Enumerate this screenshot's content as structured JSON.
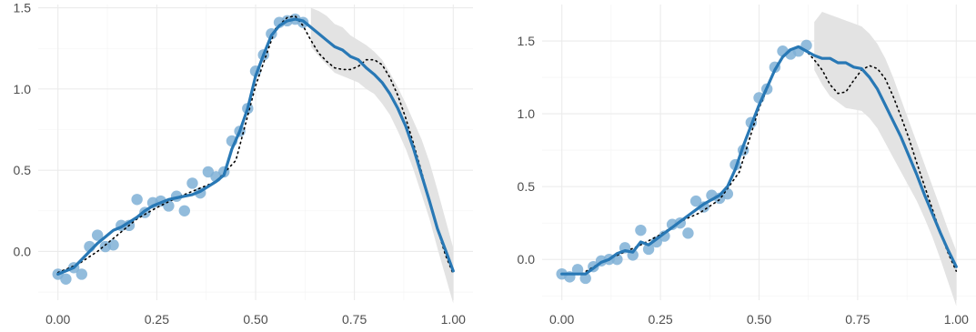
{
  "chart_data": [
    {
      "type": "scatter",
      "xlim": [
        -0.05,
        1.05
      ],
      "ylim": [
        -0.3,
        1.52
      ],
      "x_ticks": [
        {
          "value": 0.0,
          "label": "0.00"
        },
        {
          "value": 0.25,
          "label": "0.25"
        },
        {
          "value": 0.5,
          "label": "0.50"
        },
        {
          "value": 0.75,
          "label": "0.75"
        },
        {
          "value": 1.0,
          "label": "1.00"
        }
      ],
      "y_ticks": [
        {
          "value": 0.0,
          "label": "0.0"
        },
        {
          "value": 0.5,
          "label": "0.5"
        },
        {
          "value": 1.0,
          "label": "1.0"
        },
        {
          "value": 1.5,
          "label": "1.5"
        }
      ],
      "grid": true,
      "colors": {
        "points": "#7fb0d6",
        "fit": "#2878b5",
        "band": "#e3e3e3",
        "truth": "#000000",
        "grid": "#ebebeb"
      },
      "observations": {
        "x": [
          0.0,
          0.02,
          0.04,
          0.06,
          0.08,
          0.1,
          0.12,
          0.14,
          0.16,
          0.18,
          0.2,
          0.22,
          0.24,
          0.26,
          0.28,
          0.3,
          0.32,
          0.34,
          0.36,
          0.38,
          0.4,
          0.42,
          0.44,
          0.46,
          0.48,
          0.5,
          0.52,
          0.54,
          0.56,
          0.58,
          0.6,
          0.62
        ],
        "y": [
          -0.14,
          -0.17,
          -0.1,
          -0.14,
          0.03,
          0.1,
          0.03,
          0.04,
          0.16,
          0.16,
          0.32,
          0.24,
          0.3,
          0.31,
          0.28,
          0.34,
          0.25,
          0.42,
          0.36,
          0.49,
          0.46,
          0.49,
          0.68,
          0.74,
          0.88,
          1.11,
          1.21,
          1.34,
          1.41,
          1.42,
          1.43,
          1.41
        ]
      },
      "fit": {
        "x": [
          0.0,
          0.02,
          0.04,
          0.06,
          0.08,
          0.1,
          0.12,
          0.14,
          0.16,
          0.18,
          0.2,
          0.22,
          0.24,
          0.26,
          0.28,
          0.3,
          0.32,
          0.34,
          0.36,
          0.38,
          0.4,
          0.42,
          0.44,
          0.46,
          0.48,
          0.5,
          0.52,
          0.54,
          0.56,
          0.58,
          0.6,
          0.62,
          0.64,
          0.66,
          0.68,
          0.7,
          0.72,
          0.74,
          0.76,
          0.78,
          0.8,
          0.82,
          0.84,
          0.86,
          0.88,
          0.9,
          0.92,
          0.94,
          0.96,
          0.98,
          1.0
        ],
        "y": [
          -0.14,
          -0.12,
          -0.1,
          -0.05,
          0.0,
          0.05,
          0.09,
          0.13,
          0.15,
          0.18,
          0.21,
          0.25,
          0.28,
          0.3,
          0.32,
          0.33,
          0.34,
          0.35,
          0.37,
          0.4,
          0.43,
          0.47,
          0.63,
          0.74,
          0.88,
          1.08,
          1.21,
          1.33,
          1.39,
          1.42,
          1.43,
          1.42,
          1.38,
          1.34,
          1.3,
          1.26,
          1.24,
          1.2,
          1.18,
          1.13,
          1.09,
          1.04,
          0.97,
          0.88,
          0.77,
          0.63,
          0.47,
          0.31,
          0.14,
          0.01,
          -0.12
        ]
      },
      "band": {
        "x": [
          0.64,
          0.66,
          0.68,
          0.7,
          0.72,
          0.74,
          0.76,
          0.78,
          0.8,
          0.82,
          0.84,
          0.86,
          0.88,
          0.9,
          0.92,
          0.94,
          0.96,
          0.98,
          1.0
        ],
        "upper": [
          1.5,
          1.48,
          1.45,
          1.4,
          1.38,
          1.33,
          1.3,
          1.27,
          1.23,
          1.18,
          1.1,
          1.01,
          0.91,
          0.8,
          0.69,
          0.55,
          0.38,
          0.2,
          0.02
        ],
        "lower": [
          1.26,
          1.2,
          1.15,
          1.1,
          1.08,
          1.06,
          1.04,
          1.0,
          0.97,
          0.91,
          0.84,
          0.74,
          0.63,
          0.5,
          0.35,
          0.2,
          0.02,
          -0.15,
          -0.32
        ]
      },
      "truth": {
        "x": [
          0.0,
          0.05,
          0.1,
          0.15,
          0.2,
          0.25,
          0.3,
          0.35,
          0.4,
          0.45,
          0.5,
          0.55,
          0.58,
          0.6,
          0.62,
          0.64,
          0.66,
          0.68,
          0.7,
          0.72,
          0.74,
          0.76,
          0.78,
          0.8,
          0.82,
          0.84,
          0.86,
          0.88,
          0.9,
          0.92,
          0.94,
          0.96,
          0.98,
          1.0
        ],
        "y": [
          -0.13,
          -0.08,
          0.0,
          0.1,
          0.2,
          0.27,
          0.33,
          0.38,
          0.43,
          0.56,
          1.02,
          1.37,
          1.44,
          1.45,
          1.39,
          1.3,
          1.22,
          1.17,
          1.13,
          1.12,
          1.12,
          1.14,
          1.18,
          1.18,
          1.15,
          1.07,
          0.96,
          0.82,
          0.66,
          0.49,
          0.31,
          0.14,
          -0.02,
          -0.14
        ]
      }
    },
    {
      "type": "scatter",
      "xlim": [
        -0.05,
        1.05
      ],
      "ylim": [
        -0.28,
        1.75
      ],
      "x_ticks": [
        {
          "value": 0.0,
          "label": "0.00"
        },
        {
          "value": 0.25,
          "label": "0.25"
        },
        {
          "value": 0.5,
          "label": "0.50"
        },
        {
          "value": 0.75,
          "label": "0.75"
        },
        {
          "value": 1.0,
          "label": "1.00"
        }
      ],
      "y_ticks": [
        {
          "value": 0.0,
          "label": "0.0"
        },
        {
          "value": 0.5,
          "label": "0.5"
        },
        {
          "value": 1.0,
          "label": "1.0"
        },
        {
          "value": 1.5,
          "label": "1.5"
        }
      ],
      "grid": true,
      "colors": {
        "points": "#7fb0d6",
        "fit": "#2878b5",
        "band": "#e3e3e3",
        "truth": "#000000",
        "grid": "#ebebeb"
      },
      "observations": {
        "x": [
          0.0,
          0.02,
          0.04,
          0.06,
          0.08,
          0.1,
          0.12,
          0.14,
          0.16,
          0.18,
          0.2,
          0.22,
          0.24,
          0.26,
          0.28,
          0.3,
          0.32,
          0.34,
          0.36,
          0.38,
          0.4,
          0.42,
          0.44,
          0.46,
          0.48,
          0.5,
          0.52,
          0.54,
          0.56,
          0.58,
          0.6,
          0.62
        ],
        "y": [
          -0.1,
          -0.12,
          -0.07,
          -0.13,
          -0.05,
          -0.01,
          0.0,
          0.0,
          0.08,
          0.03,
          0.2,
          0.07,
          0.12,
          0.16,
          0.24,
          0.25,
          0.18,
          0.4,
          0.36,
          0.44,
          0.42,
          0.45,
          0.65,
          0.75,
          0.94,
          1.11,
          1.17,
          1.32,
          1.43,
          1.41,
          1.43,
          1.47
        ]
      },
      "fit": {
        "x": [
          0.0,
          0.02,
          0.04,
          0.06,
          0.08,
          0.1,
          0.12,
          0.14,
          0.16,
          0.18,
          0.2,
          0.22,
          0.24,
          0.26,
          0.28,
          0.3,
          0.32,
          0.34,
          0.36,
          0.38,
          0.4,
          0.42,
          0.44,
          0.46,
          0.48,
          0.5,
          0.52,
          0.54,
          0.56,
          0.58,
          0.6,
          0.62,
          0.64,
          0.66,
          0.68,
          0.7,
          0.72,
          0.74,
          0.76,
          0.78,
          0.8,
          0.82,
          0.84,
          0.86,
          0.88,
          0.9,
          0.92,
          0.94,
          0.96,
          0.98,
          1.0
        ],
        "y": [
          -0.1,
          -0.1,
          -0.1,
          -0.1,
          -0.06,
          -0.02,
          0.0,
          0.04,
          0.06,
          0.05,
          0.12,
          0.1,
          0.14,
          0.18,
          0.22,
          0.26,
          0.3,
          0.34,
          0.38,
          0.41,
          0.44,
          0.5,
          0.62,
          0.78,
          0.92,
          1.06,
          1.18,
          1.3,
          1.39,
          1.44,
          1.46,
          1.43,
          1.4,
          1.38,
          1.38,
          1.35,
          1.35,
          1.32,
          1.31,
          1.25,
          1.17,
          1.06,
          0.95,
          0.84,
          0.71,
          0.58,
          0.44,
          0.31,
          0.18,
          0.06,
          -0.05
        ]
      },
      "band": {
        "x": [
          0.64,
          0.66,
          0.68,
          0.7,
          0.72,
          0.74,
          0.76,
          0.78,
          0.8,
          0.82,
          0.84,
          0.86,
          0.88,
          0.9,
          0.92,
          0.94,
          0.96,
          0.98,
          1.0
        ],
        "upper": [
          1.63,
          1.7,
          1.68,
          1.66,
          1.64,
          1.62,
          1.6,
          1.55,
          1.48,
          1.38,
          1.25,
          1.1,
          0.95,
          0.8,
          0.65,
          0.5,
          0.35,
          0.2,
          0.06
        ],
        "lower": [
          1.3,
          1.2,
          1.12,
          1.08,
          1.04,
          1.03,
          1.02,
          0.97,
          0.9,
          0.8,
          0.7,
          0.6,
          0.5,
          0.4,
          0.28,
          0.15,
          0.0,
          -0.16,
          -0.32
        ]
      },
      "truth": {
        "x": [
          0.0,
          0.05,
          0.1,
          0.15,
          0.2,
          0.25,
          0.3,
          0.35,
          0.4,
          0.45,
          0.5,
          0.55,
          0.58,
          0.6,
          0.62,
          0.64,
          0.66,
          0.68,
          0.7,
          0.72,
          0.74,
          0.76,
          0.78,
          0.8,
          0.82,
          0.84,
          0.86,
          0.88,
          0.9,
          0.92,
          0.94,
          0.96,
          0.98,
          1.0
        ],
        "y": [
          -0.1,
          -0.1,
          -0.02,
          0.04,
          0.1,
          0.17,
          0.26,
          0.32,
          0.41,
          0.6,
          1.04,
          1.36,
          1.44,
          1.46,
          1.43,
          1.37,
          1.3,
          1.2,
          1.14,
          1.15,
          1.23,
          1.3,
          1.33,
          1.31,
          1.24,
          1.12,
          0.98,
          0.83,
          0.66,
          0.5,
          0.34,
          0.18,
          0.04,
          -0.08
        ]
      }
    }
  ]
}
